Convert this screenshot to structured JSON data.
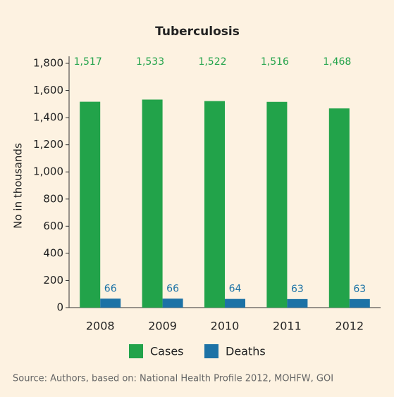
{
  "chart_data": {
    "type": "bar",
    "title": "Tuberculosis",
    "ylabel": "No in thousands",
    "categories": [
      "2008",
      "2009",
      "2010",
      "2011",
      "2012"
    ],
    "series": [
      {
        "name": "Cases",
        "color": "#22a34a",
        "values": [
          1517,
          1533,
          1522,
          1516,
          1468
        ],
        "value_labels": [
          "1,517",
          "1,533",
          "1,522",
          "1,516",
          "1,468"
        ]
      },
      {
        "name": "Deaths",
        "color": "#1c72a6",
        "values": [
          66,
          66,
          64,
          63,
          63
        ]
      }
    ],
    "ylim": [
      0,
      1800
    ],
    "yticks": [
      0,
      200,
      400,
      600,
      800,
      {
        "value": 1000,
        "label": "1,000"
      },
      {
        "value": 1200,
        "label": "1,200"
      },
      {
        "value": 1400,
        "label": "1,400"
      },
      {
        "value": 1600,
        "label": "1,600"
      },
      {
        "value": 1800,
        "label": "1,800"
      }
    ],
    "legend": "bottom",
    "source": "Source: Authors, based on: National Health Profile 2012, MOHFW, GOI"
  }
}
